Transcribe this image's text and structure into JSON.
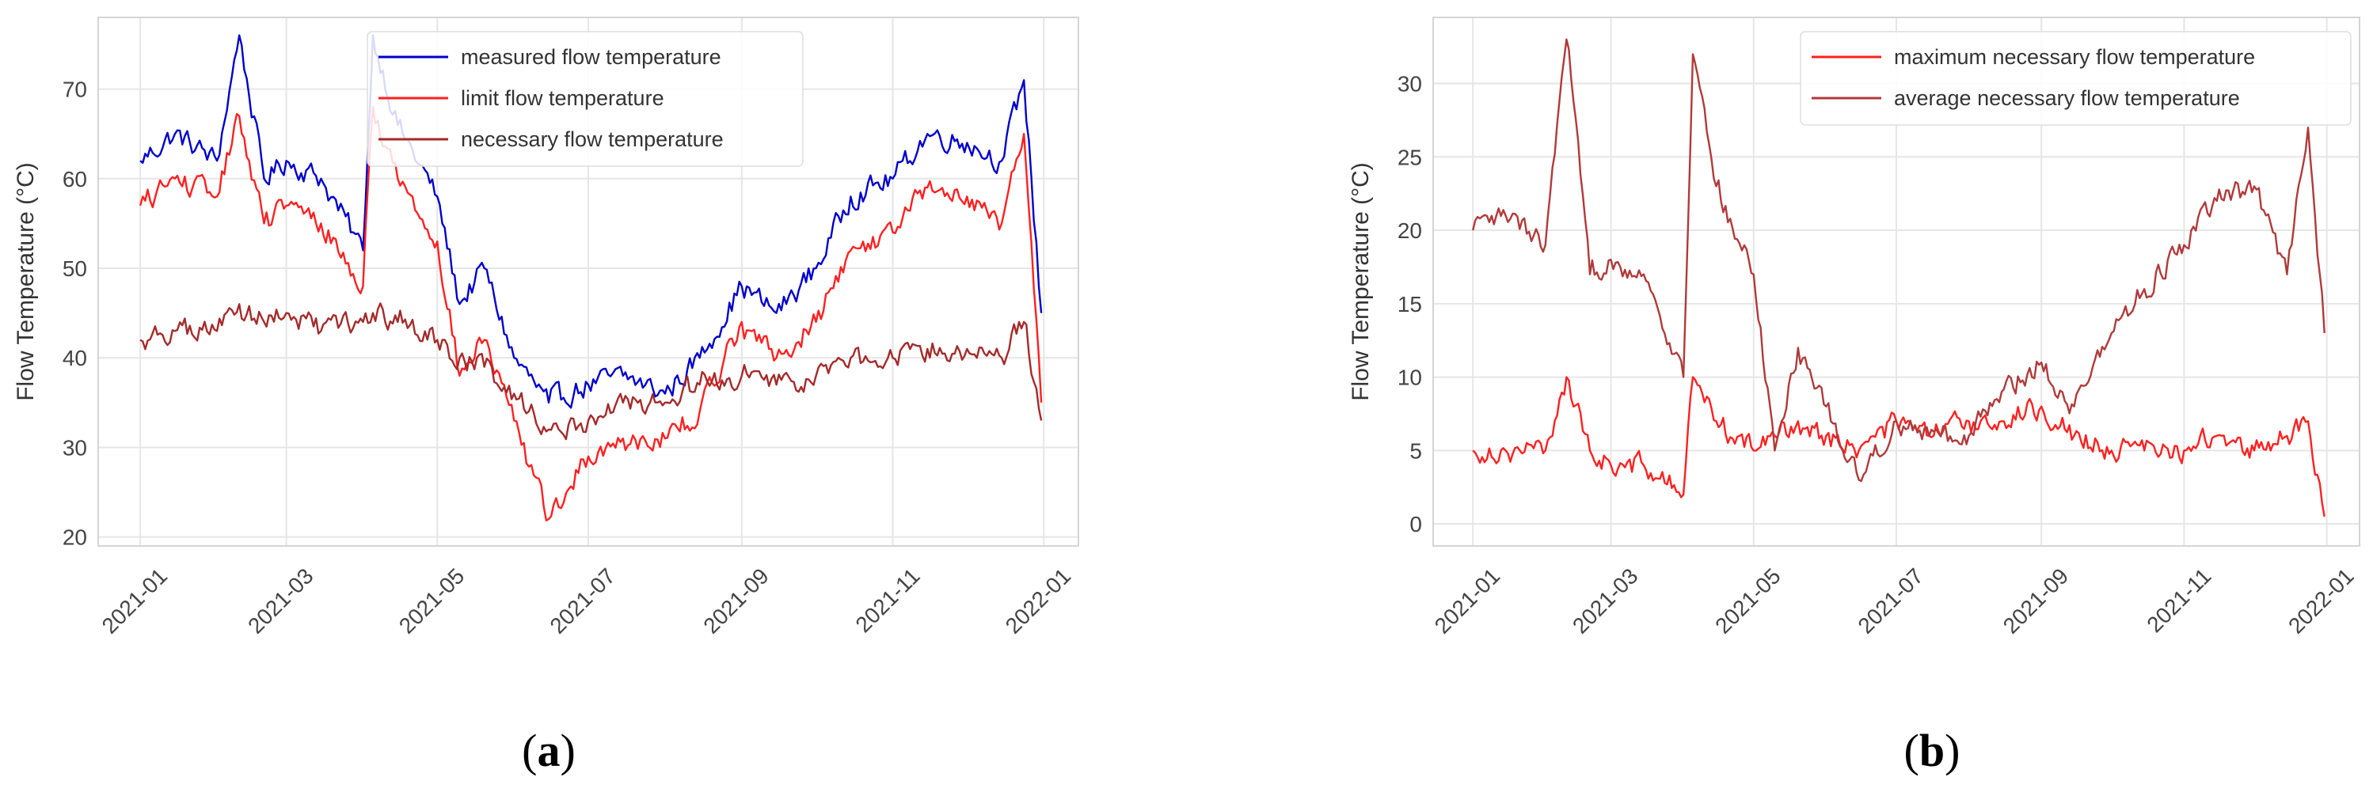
{
  "chart_data": [
    {
      "type": "line",
      "caption": "(a)",
      "ylabel": "Flow Temperature (°C)",
      "xlabel": "",
      "x_ticks": [
        "2021-01",
        "2021-03",
        "2021-05",
        "2021-07",
        "2021-09",
        "2021-11",
        "2022-01"
      ],
      "y_ticks": [
        20,
        30,
        40,
        50,
        60,
        70
      ],
      "xlim": [
        "2020-12-15",
        "2022-01-15"
      ],
      "ylim": [
        19,
        78
      ],
      "grid": true,
      "legend_position": "top-right",
      "x_anchors": [
        "2021-01-01",
        "2021-01-15",
        "2021-02-01",
        "2021-02-10",
        "2021-02-20",
        "2021-03-01",
        "2021-03-15",
        "2021-04-01",
        "2021-04-05",
        "2021-04-15",
        "2021-05-01",
        "2021-05-10",
        "2021-05-20",
        "2021-06-01",
        "2021-06-15",
        "2021-07-01",
        "2021-07-15",
        "2021-08-01",
        "2021-08-15",
        "2021-09-01",
        "2021-09-15",
        "2021-10-01",
        "2021-10-15",
        "2021-11-01",
        "2021-11-15",
        "2021-12-01",
        "2021-12-15",
        "2021-12-24",
        "2021-12-31"
      ],
      "series": [
        {
          "name": "measured flow temperature",
          "color": "#0000cc",
          "values": [
            62,
            65,
            62,
            76,
            60,
            62,
            60,
            52,
            76,
            66,
            58,
            46,
            50,
            40,
            35,
            37,
            38,
            36,
            40,
            48,
            45,
            50,
            58,
            60,
            65,
            64,
            62,
            71,
            45
          ]
        },
        {
          "name": "limit flow temperature",
          "color": "#ff2020",
          "values": [
            57,
            60,
            58,
            67,
            55,
            57,
            55,
            48,
            68,
            60,
            53,
            38,
            42,
            33,
            22,
            29,
            31,
            31,
            34,
            44,
            40,
            44,
            52,
            54,
            59,
            58,
            55,
            65,
            35
          ]
        },
        {
          "name": "necessary flow temperature",
          "color": "#a52a2a",
          "values": [
            42,
            43,
            43,
            46,
            44,
            45,
            43,
            44,
            45,
            44,
            42,
            40,
            39,
            36,
            32,
            33,
            35,
            35,
            37,
            38,
            37,
            38,
            40,
            40,
            41,
            41,
            40,
            44,
            33
          ]
        }
      ]
    },
    {
      "type": "line",
      "caption": "(b)",
      "ylabel": "Flow Temperature (°C)",
      "xlabel": "",
      "x_ticks": [
        "2021-01",
        "2021-03",
        "2021-05",
        "2021-07",
        "2021-09",
        "2021-11",
        "2022-01"
      ],
      "y_ticks": [
        0,
        5,
        10,
        15,
        20,
        25,
        30
      ],
      "xlim": [
        "2020-12-15",
        "2022-01-15"
      ],
      "ylim": [
        -1.5,
        34.5
      ],
      "grid": true,
      "legend_position": "top-right",
      "x_anchors": [
        "2021-01-01",
        "2021-01-15",
        "2021-02-01",
        "2021-02-10",
        "2021-02-20",
        "2021-03-01",
        "2021-03-15",
        "2021-04-01",
        "2021-04-05",
        "2021-04-15",
        "2021-05-01",
        "2021-05-10",
        "2021-05-20",
        "2021-06-01",
        "2021-06-15",
        "2021-07-01",
        "2021-07-15",
        "2021-08-01",
        "2021-08-15",
        "2021-09-01",
        "2021-09-15",
        "2021-10-01",
        "2021-10-15",
        "2021-11-01",
        "2021-11-15",
        "2021-12-01",
        "2021-12-15",
        "2021-12-24",
        "2021-12-31"
      ],
      "series": [
        {
          "name": "maximum necessary flow temperature",
          "color": "#ff2020",
          "values": [
            5,
            5,
            5,
            10,
            5,
            4,
            4,
            2,
            10,
            7,
            5,
            6,
            7,
            6,
            5,
            7,
            6,
            7,
            7,
            8,
            6,
            5,
            5,
            5,
            6,
            5,
            6,
            7,
            0.5
          ]
        },
        {
          "name": "average necessary flow temperature",
          "color": "#b03a3a",
          "values": [
            20,
            21,
            19,
            33,
            17,
            18,
            17,
            10,
            32,
            23,
            17,
            5,
            12,
            8,
            3,
            7,
            6,
            6,
            9,
            11,
            8,
            13,
            16,
            19,
            22,
            23,
            17,
            27,
            13
          ]
        }
      ]
    }
  ]
}
